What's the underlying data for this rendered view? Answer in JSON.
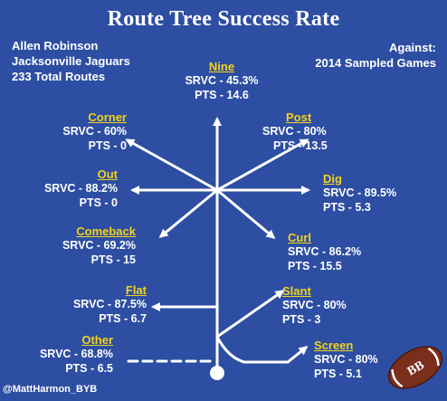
{
  "title": "Route Tree Success Rate",
  "player": {
    "name": "Allen Robinson",
    "team": "Jacksonville Jaguars",
    "routes": "233 Total Routes"
  },
  "against": {
    "label": "Against:",
    "value": "2014 Sampled Games"
  },
  "routes": {
    "nine": {
      "name": "Nine",
      "srvc": "SRVC - 45.3%",
      "pts": "PTS - 14.6"
    },
    "corner": {
      "name": "Corner",
      "srvc": "SRVC - 60%",
      "pts": "PTS -  0"
    },
    "post": {
      "name": "Post",
      "srvc": "SRVC - 80%",
      "pts": "PTS - 13.5"
    },
    "out": {
      "name": "Out",
      "srvc": "SRVC - 88.2%",
      "pts": "PTS -  0"
    },
    "dig": {
      "name": "Dig",
      "srvc": "SRVC - 89.5%",
      "pts": "PTS - 5.3"
    },
    "comeback": {
      "name": "Comeback",
      "srvc": "SRVC - 69.2%",
      "pts": "PTS - 15"
    },
    "curl": {
      "name": "Curl",
      "srvc": "SRVC - 86.2%",
      "pts": "PTS -  15.5"
    },
    "flat": {
      "name": "Flat",
      "srvc": "SRVC - 87.5%",
      "pts": "PTS - 6.7"
    },
    "slant": {
      "name": "Slant",
      "srvc": "SRVC - 80%",
      "pts": "PTS -  3"
    },
    "other": {
      "name": "Other",
      "srvc": "SRVC - 68.8%",
      "pts": "PTS - 6.5"
    },
    "screen": {
      "name": "Screen",
      "srvc": "SRVC - 80%",
      "pts": "PTS -  5.1"
    }
  },
  "credit": "@MattHarmon_BYB",
  "logo": "BB",
  "colors": {
    "background": "#2d4ea2",
    "route_name": "#f2d21b",
    "text": "#ffffff",
    "football": "#7a2e1c"
  }
}
